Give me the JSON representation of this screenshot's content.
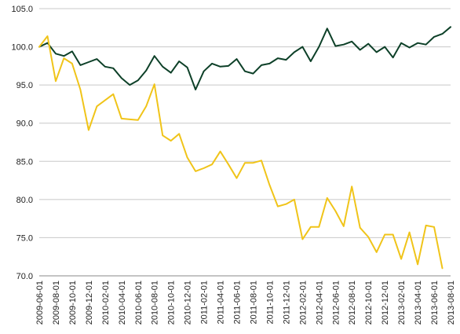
{
  "chart_data": {
    "type": "line",
    "title": "",
    "xlabel": "",
    "ylabel": "",
    "ylim": [
      70,
      105
    ],
    "ytick_step": 5,
    "grid": "horizontal",
    "x": [
      "2009-06-01",
      "2009-07-01",
      "2009-08-01",
      "2009-09-01",
      "2009-10-01",
      "2009-11-01",
      "2009-12-01",
      "2010-01-01",
      "2010-02-01",
      "2010-03-01",
      "2010-04-01",
      "2010-05-01",
      "2010-06-01",
      "2010-07-01",
      "2010-08-01",
      "2010-09-01",
      "2010-10-01",
      "2010-11-01",
      "2010-12-01",
      "2011-01-01",
      "2011-02-01",
      "2011-03-01",
      "2011-04-01",
      "2011-05-01",
      "2011-06-01",
      "2011-07-01",
      "2011-08-01",
      "2011-09-01",
      "2011-10-01",
      "2011-11-01",
      "2011-12-01",
      "2012-01-01",
      "2012-02-01",
      "2012-03-01",
      "2012-04-01",
      "2012-05-01",
      "2012-06-01",
      "2012-07-01",
      "2012-08-01",
      "2012-09-01",
      "2012-10-01",
      "2012-11-01",
      "2012-12-01",
      "2013-01-01",
      "2013-02-01",
      "2013-03-01",
      "2013-04-01",
      "2013-05-01",
      "2013-06-01",
      "2013-07-01",
      "2013-08-01"
    ],
    "xtick_labels": [
      "2009-06-01",
      "2009-08-01",
      "2009-10-01",
      "2009-12-01",
      "2010-02-01",
      "2010-04-01",
      "2010-06-01",
      "2010-08-01",
      "2010-10-01",
      "2010-12-01",
      "2011-02-01",
      "2011-04-01",
      "2011-06-01",
      "2011-08-01",
      "2011-10-01",
      "2011-12-01",
      "2012-02-01",
      "2012-04-01",
      "2012-06-01",
      "2012-08-01",
      "2012-10-01",
      "2012-12-01",
      "2013-02-01",
      "2013-04-01",
      "2013-06-01",
      "2013-08-01"
    ],
    "ytick_labels": [
      "70.0",
      "75.0",
      "80.0",
      "85.0",
      "90.0",
      "95.0",
      "100.0",
      "105.0"
    ],
    "series": [
      {
        "color": "#0d4028",
        "values": [
          100.0,
          100.5,
          99.1,
          98.8,
          99.4,
          97.6,
          98.0,
          98.4,
          97.4,
          97.2,
          95.9,
          95.0,
          95.6,
          96.9,
          98.8,
          97.4,
          96.6,
          98.1,
          97.3,
          94.4,
          96.8,
          97.8,
          97.4,
          97.5,
          98.4,
          96.8,
          96.5,
          97.6,
          97.8,
          98.5,
          98.3,
          99.3,
          100.0,
          98.1,
          100.0,
          102.4,
          100.1,
          100.3,
          100.7,
          99.6,
          100.4,
          99.3,
          100.0,
          98.6,
          100.5,
          99.9,
          100.5,
          100.3,
          101.3,
          101.7,
          102.6
        ]
      },
      {
        "color": "#f0c419",
        "values": [
          100.0,
          101.4,
          95.5,
          98.5,
          97.8,
          94.4,
          89.1,
          92.2,
          93.0,
          93.8,
          90.6,
          90.5,
          90.4,
          92.2,
          95.1,
          88.4,
          87.7,
          88.6,
          85.5,
          83.7,
          84.1,
          84.6,
          86.3,
          84.6,
          82.8,
          84.8,
          84.8,
          85.1,
          81.9,
          79.1,
          79.4,
          80.0,
          74.8,
          76.4,
          76.4,
          80.2,
          78.5,
          76.5,
          81.7,
          76.3,
          75.1,
          73.1,
          75.4,
          75.4,
          72.2,
          75.7,
          71.5,
          76.6,
          76.4,
          71.0,
          null
        ]
      }
    ]
  }
}
